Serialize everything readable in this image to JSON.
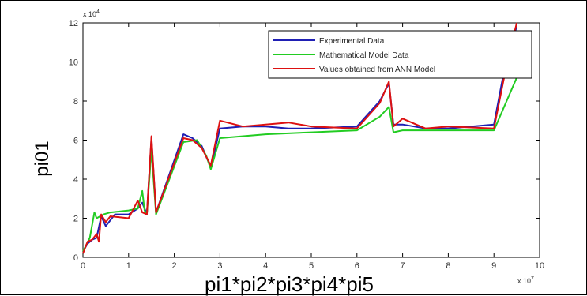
{
  "chart_data": {
    "type": "line",
    "xlabel": "pi1*pi2*pi3*pi4*pi5",
    "ylabel": "pi01",
    "x_exponent_label": "x 10",
    "x_exponent_power": "7",
    "y_exponent_label": "x 10",
    "y_exponent_power": "4",
    "xlim": [
      0,
      10
    ],
    "ylim": [
      0,
      12
    ],
    "xticks": [
      "0",
      "1",
      "2",
      "3",
      "4",
      "5",
      "6",
      "7",
      "8",
      "9",
      "10"
    ],
    "yticks": [
      "0",
      "2",
      "4",
      "6",
      "8",
      "10",
      "12"
    ],
    "legend_position": "top-right",
    "grid": false,
    "series": [
      {
        "name": "Experimental Data",
        "color": "#1f1fb4",
        "x": [
          0,
          0.1,
          0.2,
          0.3,
          0.4,
          0.5,
          0.7,
          1.0,
          1.2,
          1.3,
          1.4,
          1.5,
          1.6,
          2.2,
          2.4,
          2.6,
          2.8,
          3.0,
          3.5,
          4.0,
          4.5,
          5.0,
          6.0,
          6.5,
          6.7,
          6.8,
          7.0,
          7.5,
          8.0,
          9.0,
          9.3,
          9.5
        ],
        "y": [
          0.3,
          0.7,
          0.9,
          1.0,
          2.1,
          1.6,
          2.2,
          2.2,
          2.5,
          2.8,
          2.2,
          6.1,
          2.3,
          6.3,
          6.1,
          5.7,
          4.6,
          6.6,
          6.7,
          6.7,
          6.6,
          6.6,
          6.7,
          8.0,
          8.9,
          6.8,
          6.8,
          6.6,
          6.6,
          6.8,
          10.5,
          11.8
        ]
      },
      {
        "name": "Mathematical Model Data",
        "color": "#22cc22",
        "x": [
          0,
          0.15,
          0.25,
          0.3,
          0.45,
          0.6,
          1.0,
          1.2,
          1.3,
          1.35,
          1.4,
          1.5,
          1.6,
          2.2,
          2.5,
          2.7,
          2.8,
          3.0,
          4.0,
          5.0,
          6.0,
          6.5,
          6.7,
          6.8,
          7.0,
          7.5,
          8.0,
          9.0,
          9.5
        ],
        "y": [
          0.3,
          1.0,
          2.3,
          2.0,
          2.2,
          2.3,
          2.4,
          2.5,
          3.4,
          2.4,
          2.2,
          5.5,
          2.2,
          5.9,
          6.0,
          5.2,
          4.5,
          6.1,
          6.3,
          6.4,
          6.5,
          7.2,
          7.7,
          6.4,
          6.5,
          6.5,
          6.5,
          6.5,
          9.2
        ]
      },
      {
        "name": "Values obtained from ANN Model",
        "color": "#dd1111",
        "x": [
          0,
          0.1,
          0.2,
          0.3,
          0.35,
          0.4,
          0.5,
          0.6,
          1.0,
          1.2,
          1.3,
          1.4,
          1.5,
          1.6,
          2.2,
          2.4,
          2.6,
          2.8,
          3.0,
          3.5,
          4.0,
          4.5,
          5.0,
          6.0,
          6.5,
          6.7,
          6.8,
          7.0,
          7.5,
          8.0,
          9.0,
          9.3,
          9.5
        ],
        "y": [
          0.2,
          0.8,
          0.9,
          1.2,
          0.8,
          2.2,
          1.8,
          2.1,
          2.0,
          2.9,
          2.3,
          2.2,
          6.2,
          2.3,
          6.1,
          6.0,
          5.6,
          4.7,
          7.0,
          6.7,
          6.8,
          6.9,
          6.7,
          6.6,
          7.9,
          9.0,
          6.7,
          7.1,
          6.6,
          6.7,
          6.6,
          10.1,
          12.0
        ]
      }
    ]
  }
}
